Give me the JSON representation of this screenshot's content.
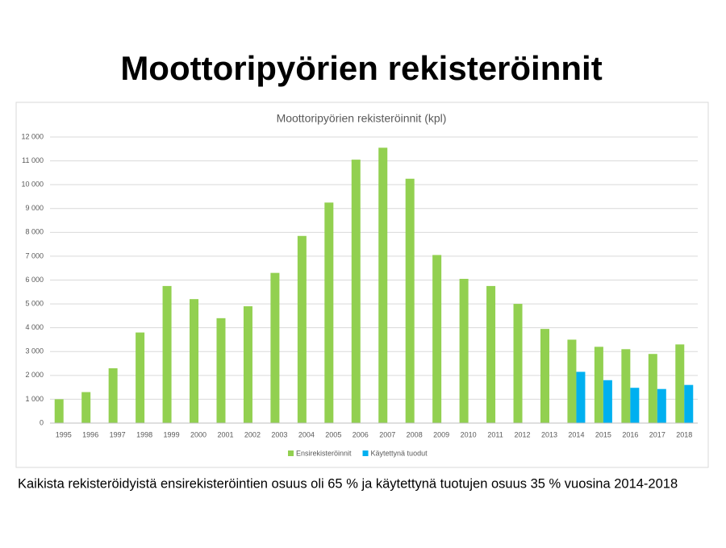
{
  "slide_title": "Moottoripyörien rekisteröinnit",
  "caption": "Kaikista rekisteröidyistä ensirekisteröintien osuus oli 65 % ja käytettynä tuotujen osuus 35 % vuosina 2014-2018",
  "chart_data": {
    "type": "bar",
    "title": "Moottoripyörien rekisteröinnit (kpl)",
    "categories": [
      "1995",
      "1996",
      "1997",
      "1998",
      "1999",
      "2000",
      "2001",
      "2002",
      "2003",
      "2004",
      "2005",
      "2006",
      "2007",
      "2008",
      "2009",
      "2010",
      "2011",
      "2012",
      "2013",
      "2014",
      "2015",
      "2016",
      "2017",
      "2018"
    ],
    "series": [
      {
        "name": "Ensirekisteröinnit",
        "color": "#92d050",
        "values": [
          1000,
          1300,
          2300,
          3800,
          5750,
          5200,
          4400,
          4900,
          6300,
          7850,
          9250,
          11050,
          11550,
          10250,
          7050,
          6050,
          5750,
          5000,
          3950,
          3500,
          3200,
          3100,
          2900,
          3300
        ]
      },
      {
        "name": "Käytettynä tuodut",
        "color": "#00b0f0",
        "values": [
          null,
          null,
          null,
          null,
          null,
          null,
          null,
          null,
          null,
          null,
          null,
          null,
          null,
          null,
          null,
          null,
          null,
          null,
          null,
          2150,
          1800,
          1480,
          1430,
          1600
        ]
      }
    ],
    "ylim": [
      0,
      12000
    ],
    "yticks": [
      0,
      {
        "value": 1000,
        "label": "1 000"
      },
      {
        "value": 2000,
        "label": "2 000"
      },
      {
        "value": 3000,
        "label": "3 000"
      },
      {
        "value": 4000,
        "label": "4 000"
      },
      {
        "value": 5000,
        "label": "5 000"
      },
      {
        "value": 6000,
        "label": "6 000"
      },
      {
        "value": 7000,
        "label": "7 000"
      },
      {
        "value": 8000,
        "label": "8 000"
      },
      {
        "value": 9000,
        "label": "9 000"
      },
      {
        "value": 10000,
        "label": "10 000"
      },
      {
        "value": 11000,
        "label": "11 000"
      },
      {
        "value": 12000,
        "label": "12 000"
      }
    ],
    "grid": true,
    "legend": "bottom"
  }
}
